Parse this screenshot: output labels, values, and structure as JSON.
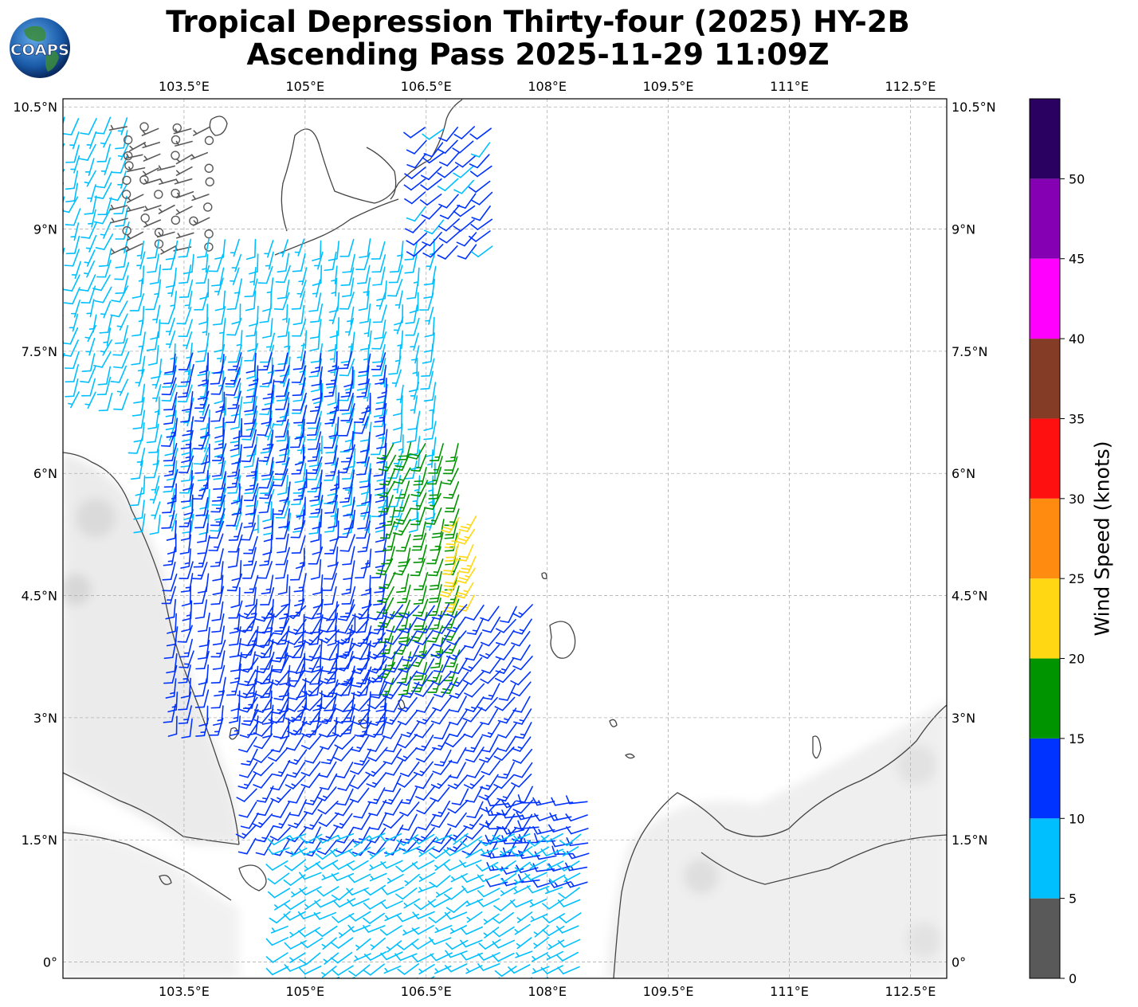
{
  "title": {
    "line1": "Tropical Depression Thirty-four (2025) HY-2B",
    "line2": "Ascending Pass 2025-11-29 11:09Z"
  },
  "logo": {
    "text": "COAPS",
    "icon": "globe-icon"
  },
  "map": {
    "lon_range": [
      102.0,
      112.95
    ],
    "lat_range": [
      -0.2,
      10.6
    ],
    "lon_ticks": [
      "103.5°E",
      "105°E",
      "106.5°E",
      "108°E",
      "109.5°E",
      "111°E",
      "112.5°E"
    ],
    "lon_tick_values": [
      103.5,
      105.0,
      106.5,
      108.0,
      109.5,
      111.0,
      112.5
    ],
    "lat_ticks": [
      "10.5°N",
      "9°N",
      "7.5°N",
      "6°N",
      "4.5°N",
      "3°N",
      "1.5°N",
      "0°"
    ],
    "lat_tick_values": [
      10.5,
      9.0,
      7.5,
      6.0,
      4.5,
      3.0,
      1.5,
      0.0
    ],
    "grid": true,
    "coastline_color": "#444444",
    "land_shading": "#d9d9d9"
  },
  "colorbar": {
    "label": "Wind Speed (knots)",
    "ticks": [
      "0",
      "5",
      "10",
      "15",
      "20",
      "25",
      "30",
      "35",
      "40",
      "45",
      "50"
    ],
    "bins": [
      {
        "min": 0,
        "max": 5,
        "color": "#595959"
      },
      {
        "min": 5,
        "max": 10,
        "color": "#00bfff"
      },
      {
        "min": 10,
        "max": 15,
        "color": "#0033ff"
      },
      {
        "min": 15,
        "max": 20,
        "color": "#009400"
      },
      {
        "min": 20,
        "max": 25,
        "color": "#ffd813"
      },
      {
        "min": 25,
        "max": 30,
        "color": "#ff8c10"
      },
      {
        "min": 30,
        "max": 35,
        "color": "#ff1010"
      },
      {
        "min": 35,
        "max": 40,
        "color": "#843c27"
      },
      {
        "min": 40,
        "max": 45,
        "color": "#ff00ff"
      },
      {
        "min": 45,
        "max": 50,
        "color": "#8400b2"
      },
      {
        "min": 50,
        "max": 55,
        "color": "#2a0060"
      }
    ]
  },
  "wind_swath": {
    "description_units": "knots",
    "regions": [
      {
        "lat": [
          7.0,
          10.5
        ],
        "lon": [
          102.0,
          103.0
        ],
        "speed": 8,
        "dir": 200
      },
      {
        "lat": [
          8.8,
          10.4
        ],
        "lon": [
          102.8,
          104.0
        ],
        "speed": 3,
        "dir": 250
      },
      {
        "lat": [
          5.5,
          9.0
        ],
        "lon": [
          103.0,
          106.8
        ],
        "speed": 8,
        "dir": 190
      },
      {
        "lat": [
          3.0,
          7.5
        ],
        "lon": [
          103.4,
          106.2
        ],
        "speed": 12,
        "dir": 190
      },
      {
        "lat": [
          3.5,
          6.5
        ],
        "lon": [
          106.1,
          107.0
        ],
        "speed": 17,
        "dir": 200
      },
      {
        "lat": [
          4.5,
          5.6
        ],
        "lon": [
          106.9,
          107.2
        ],
        "speed": 22,
        "dir": 205
      },
      {
        "lat": [
          1.5,
          4.5
        ],
        "lon": [
          104.4,
          108.0
        ],
        "speed": 12,
        "dir": 215
      },
      {
        "lat": [
          1.0,
          2.0
        ],
        "lon": [
          107.5,
          108.7
        ],
        "speed": 12,
        "dir": 260
      },
      {
        "lat": [
          -0.2,
          1.6
        ],
        "lon": [
          104.8,
          108.5
        ],
        "speed": 8,
        "dir": 240
      },
      {
        "lat": [
          8.8,
          10.3
        ],
        "lon": [
          106.5,
          107.5
        ],
        "speed": 11,
        "dir": 225
      }
    ]
  }
}
